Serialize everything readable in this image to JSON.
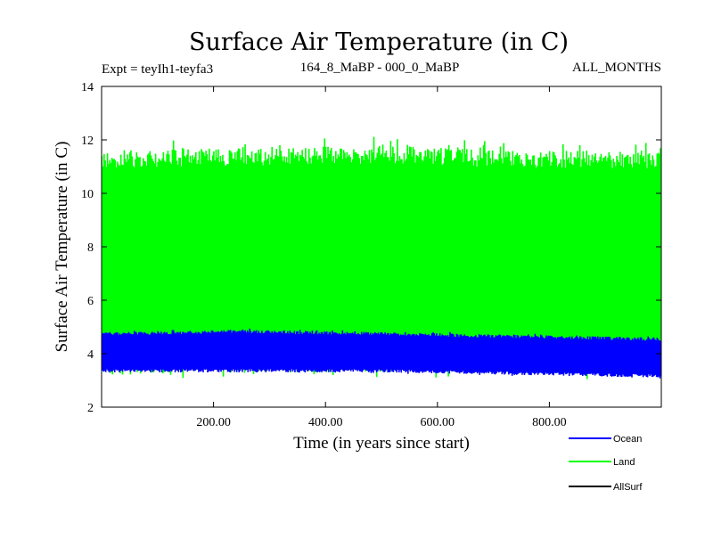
{
  "chart_data": {
    "type": "line",
    "title": "Surface Air Temperature (in C)",
    "subtitle_left": "Expt = teyIh1-teyfa3",
    "subtitle_center": "164_8_MaBP - 000_0_MaBP",
    "subtitle_right": "ALL_MONTHS",
    "xlabel": "Time (in years since start)",
    "ylabel": "Surface Air Temperature (in C)",
    "xlim": [
      0,
      1000
    ],
    "ylim": [
      2,
      14
    ],
    "x_ticks": [
      200,
      400,
      600,
      800
    ],
    "x_tick_labels": [
      "200.00",
      "400.00",
      "600.00",
      "800.00"
    ],
    "y_ticks": [
      2,
      4,
      6,
      8,
      10,
      12,
      14
    ],
    "y_tick_labels": [
      "2",
      "4",
      "6",
      "8",
      "10",
      "12",
      "14"
    ],
    "legend_position": "bottom-right",
    "series": [
      {
        "name": "Land",
        "color": "#00ff00",
        "n_points": 1000,
        "band_min_approx": [
          3.2,
          3.3,
          3.3,
          3.3,
          3.2
        ],
        "band_max_approx": [
          11.6,
          11.7,
          11.8,
          11.6,
          11.6
        ],
        "band_x": [
          0,
          250,
          500,
          750,
          1000
        ]
      },
      {
        "name": "Ocean",
        "color": "#0000ff",
        "n_points": 1000,
        "band_min_approx": [
          3.3,
          3.3,
          3.3,
          3.2,
          3.1
        ],
        "band_max_approx": [
          4.8,
          4.9,
          4.8,
          4.7,
          4.6
        ],
        "band_x": [
          0,
          250,
          500,
          750,
          1000
        ]
      },
      {
        "name": "AllSurf",
        "color": "#000000",
        "n_points": 0,
        "band_min_approx": [],
        "band_max_approx": [],
        "band_x": []
      }
    ],
    "legend": [
      {
        "name": "Ocean",
        "color": "#0000ff"
      },
      {
        "name": "Land",
        "color": "#00ff00"
      },
      {
        "name": "AllSurf",
        "color": "#000000"
      }
    ]
  }
}
